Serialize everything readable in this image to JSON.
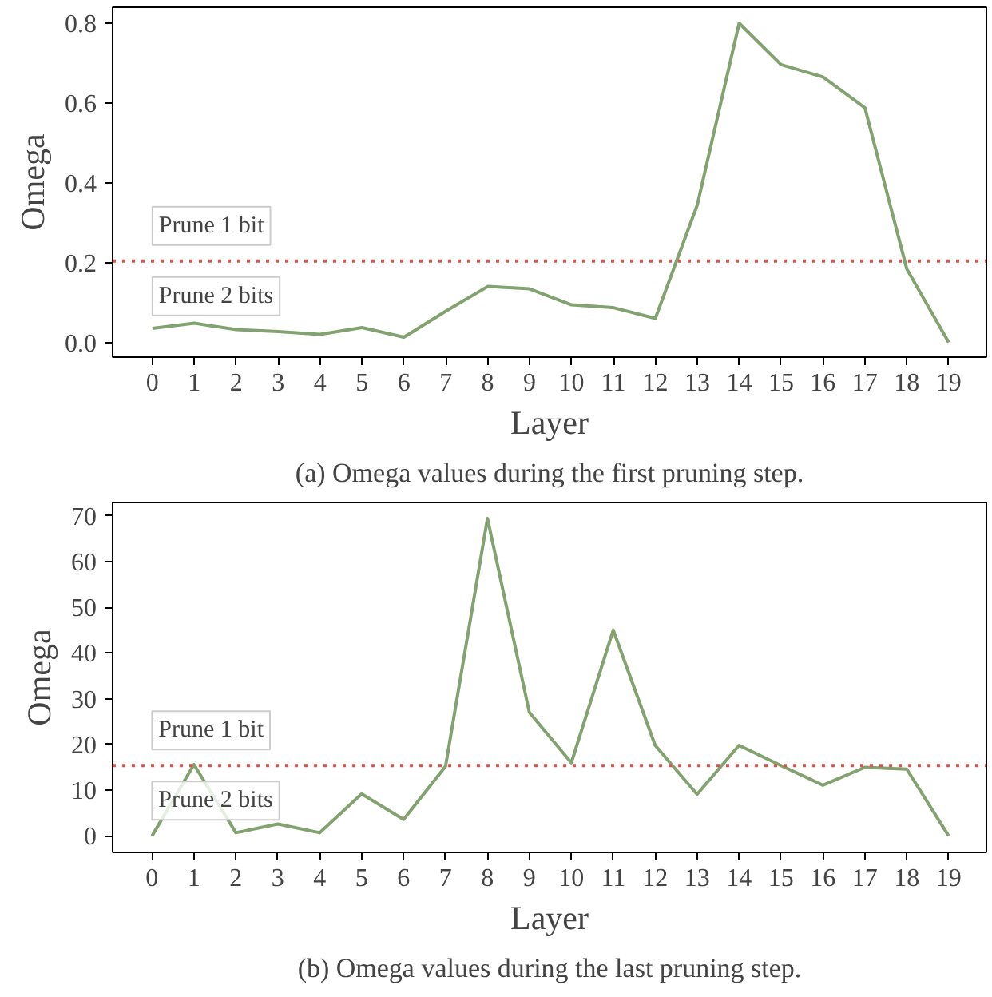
{
  "chart_data": [
    {
      "type": "line",
      "title": "(a) Omega values during the first pruning step.",
      "xlabel": "Layer",
      "ylabel": "Omega",
      "x": [
        0,
        1,
        2,
        3,
        4,
        5,
        6,
        7,
        8,
        9,
        10,
        11,
        12,
        13,
        14,
        15,
        16,
        17,
        18,
        19
      ],
      "series": [
        {
          "color": "#82a36f",
          "values": [
            0.035,
            0.048,
            0.032,
            0.027,
            0.02,
            0.037,
            0.013,
            0.078,
            0.14,
            0.134,
            0.094,
            0.087,
            0.06,
            0.344,
            0.8,
            0.696,
            0.665,
            0.588,
            0.184,
            0.0
          ]
        }
      ],
      "xlim": [
        -0.95,
        19.9
      ],
      "xticks": [
        0,
        1,
        2,
        3,
        4,
        5,
        6,
        7,
        8,
        9,
        10,
        11,
        12,
        13,
        14,
        15,
        16,
        17,
        18,
        19
      ],
      "ylim": [
        -0.037,
        0.84
      ],
      "yticks": [
        {
          "value": 0,
          "label": "0.0"
        },
        0.2,
        0.4,
        0.6,
        0.8
      ],
      "ref_lines": [
        {
          "axis": "y",
          "value": 0.204,
          "color": "#d9534f",
          "line_style": "dotted"
        }
      ],
      "annotations": [
        "Prune 1 bit",
        "Prune 2 bits"
      ],
      "line_style": "solid"
    },
    {
      "type": "line",
      "title": "(b) Omega values during the last pruning step.",
      "xlabel": "Layer",
      "ylabel": "Omega",
      "x": [
        0,
        1,
        2,
        3,
        4,
        5,
        6,
        7,
        8,
        9,
        10,
        11,
        12,
        13,
        14,
        15,
        16,
        17,
        18,
        19
      ],
      "series": [
        {
          "color": "#82a36f",
          "values": [
            0,
            15.6,
            0.7,
            2.6,
            0.7,
            9.2,
            3.6,
            15.2,
            69.4,
            27.0,
            16.0,
            45.0,
            19.8,
            9.1,
            19.8,
            15.4,
            11.1,
            15.0,
            14.6,
            0
          ]
        }
      ],
      "xlim": [
        -0.94,
        19.9
      ],
      "xticks": [
        0,
        1,
        2,
        3,
        4,
        5,
        6,
        7,
        8,
        9,
        10,
        11,
        12,
        13,
        14,
        15,
        16,
        17,
        18,
        19
      ],
      "ylim": [
        -3.6,
        72.9
      ],
      "yticks": [
        0,
        10,
        20,
        30,
        40,
        50,
        60,
        70
      ],
      "ref_lines": [
        {
          "axis": "y",
          "value": 15.4,
          "color": "#d9534f",
          "line_style": "dotted"
        }
      ],
      "annotations": [
        "Prune 1 bit",
        "Prune 2 bits"
      ],
      "line_style": "solid"
    }
  ]
}
